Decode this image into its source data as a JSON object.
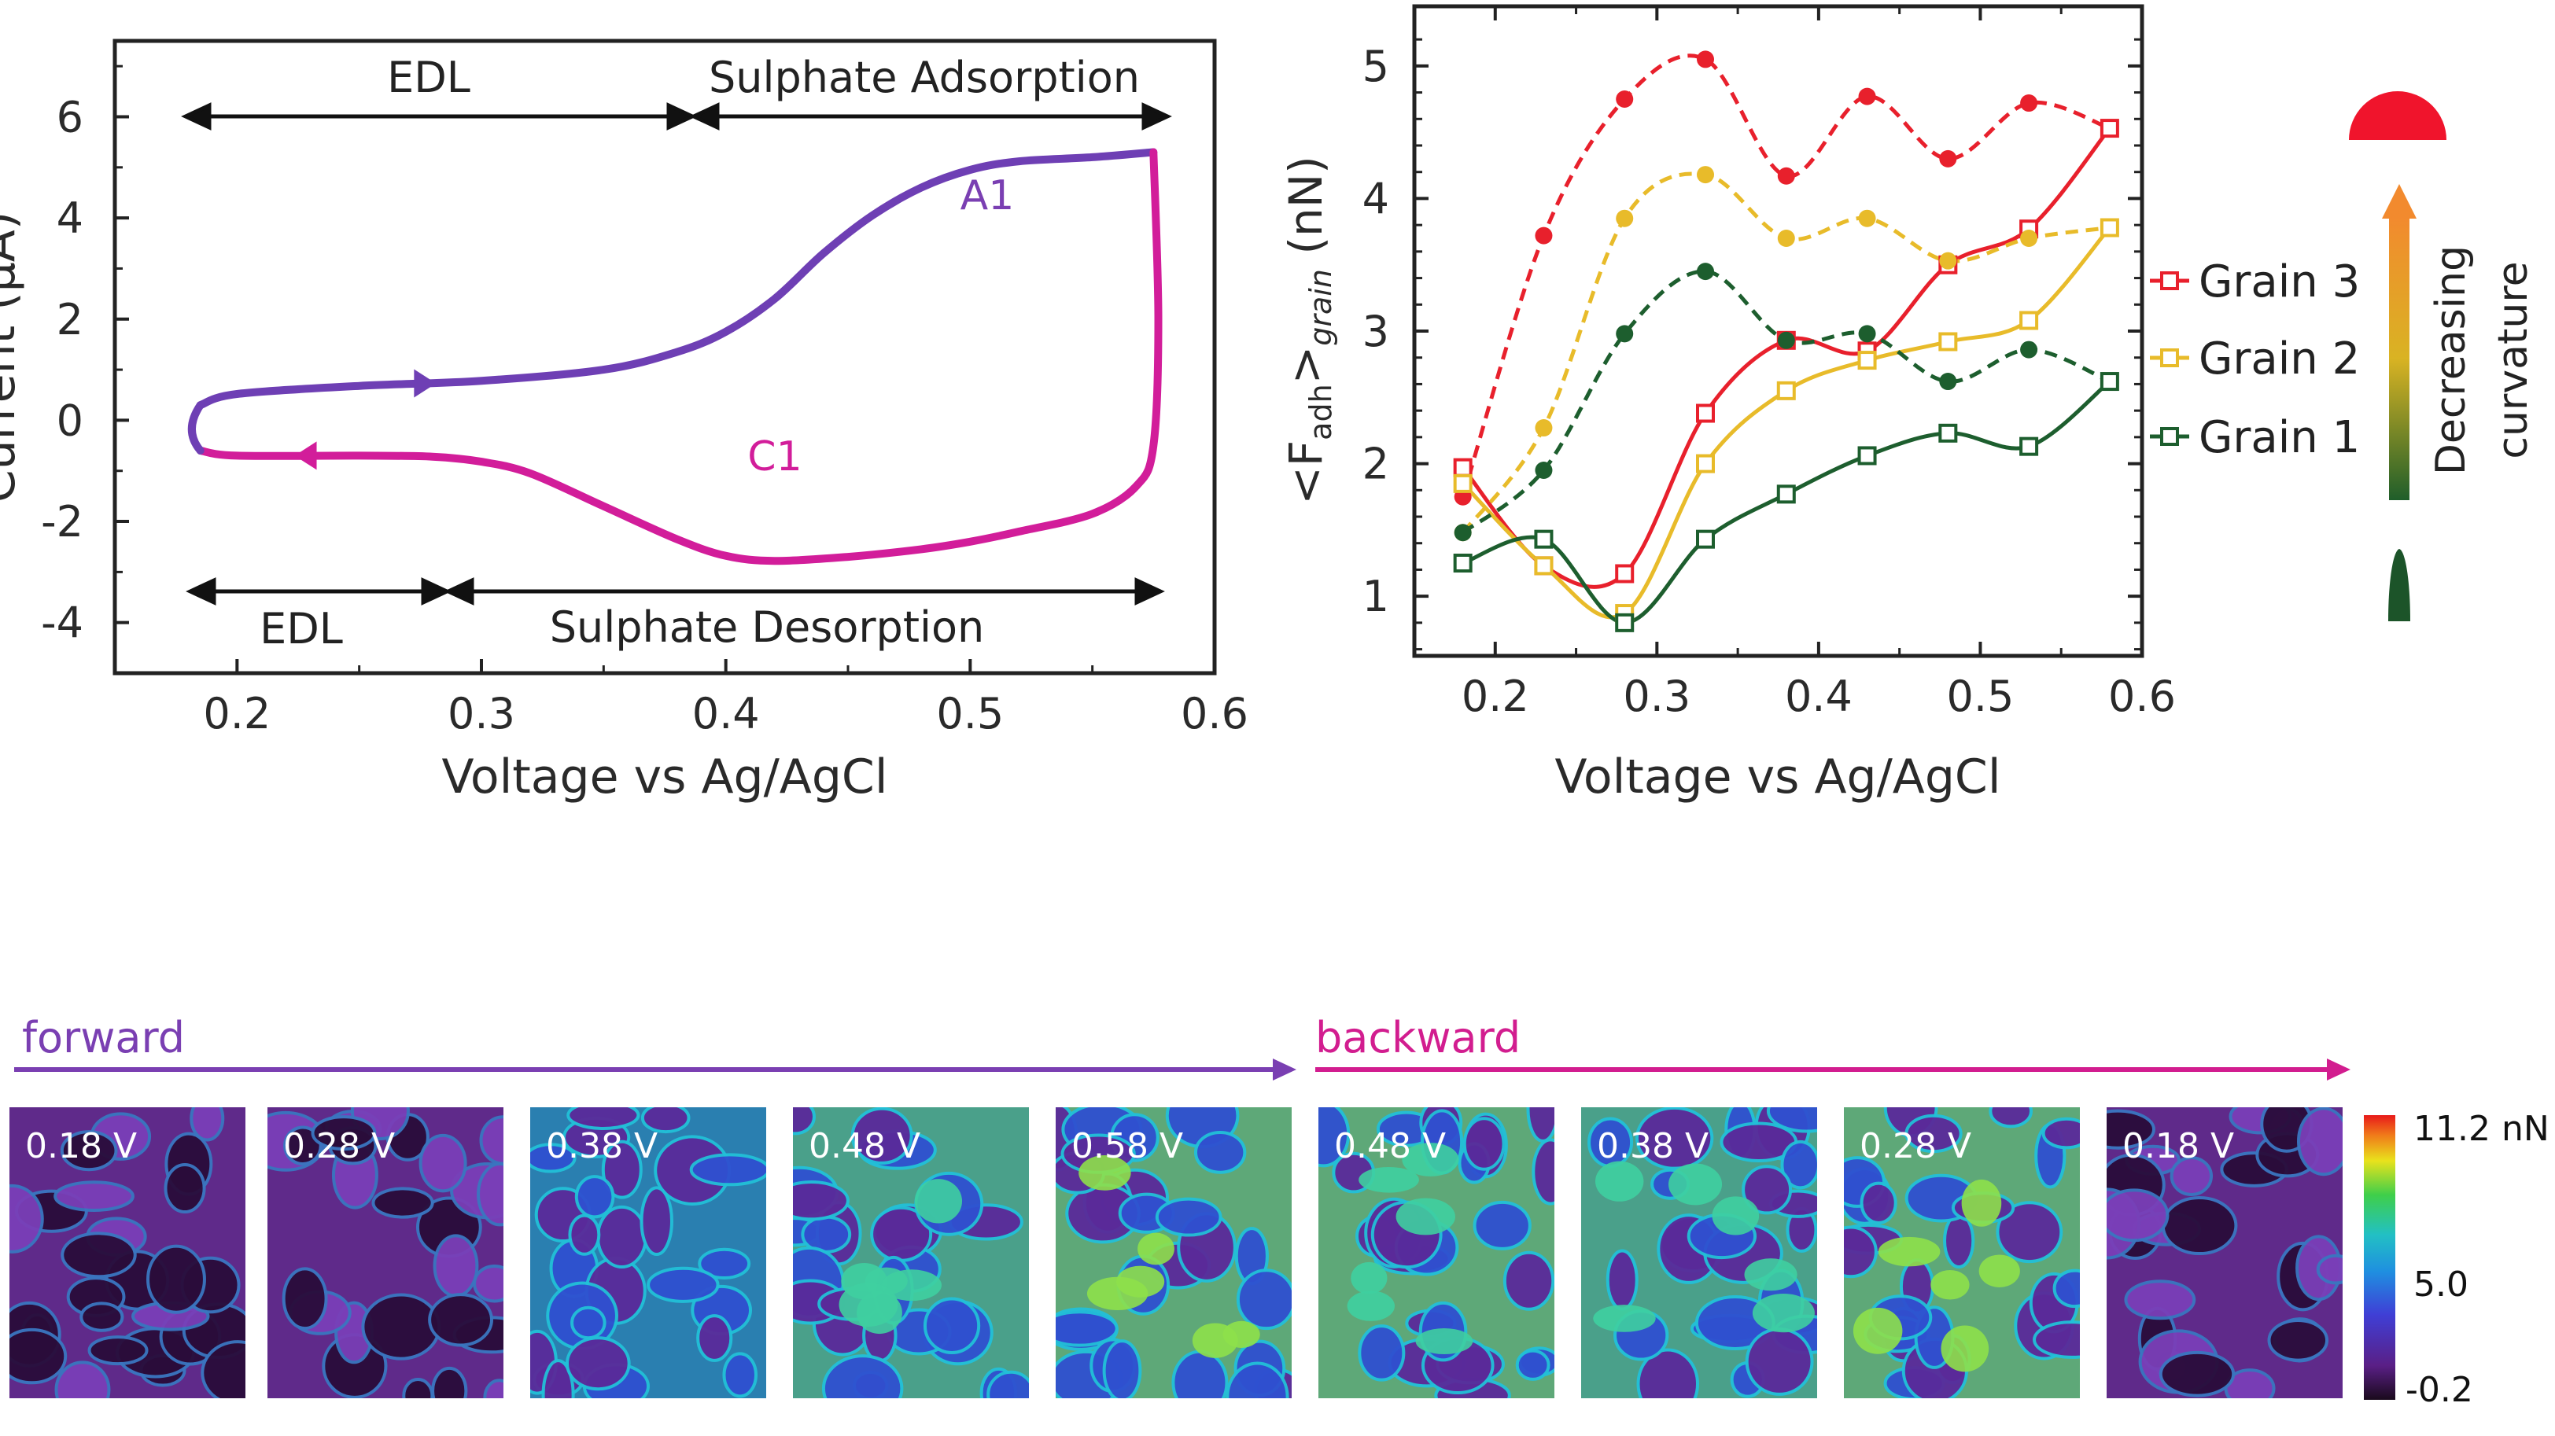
{
  "chart_data": [
    {
      "type": "line",
      "panel": "cyclic-voltammogram",
      "xlabel": "Voltage vs Ag/AgCl",
      "ylabel": "Current (μA)",
      "xlim": [
        0.15,
        0.6
      ],
      "ylim": [
        -5,
        7.5
      ],
      "x_ticks": [
        "0.2",
        "0.3",
        "0.4",
        "0.5",
        "0.6"
      ],
      "y_ticks": [
        "6",
        "4",
        "2",
        "0",
        "-2",
        "-4"
      ],
      "series": [
        {
          "color": "#6e3fb4",
          "x": [
            0.185,
            0.2,
            0.25,
            0.3,
            0.35,
            0.38,
            0.4,
            0.42,
            0.44,
            0.46,
            0.48,
            0.5,
            0.52,
            0.55,
            0.575
          ],
          "y": [
            0.3,
            0.52,
            0.68,
            0.78,
            1.0,
            1.35,
            1.75,
            2.4,
            3.3,
            4.05,
            4.6,
            4.95,
            5.12,
            5.2,
            5.3
          ]
        },
        {
          "color": "#d21d9a",
          "x": [
            0.575,
            0.577,
            0.575,
            0.568,
            0.55,
            0.52,
            0.5,
            0.48,
            0.45,
            0.42,
            0.4,
            0.38,
            0.35,
            0.32,
            0.3,
            0.28,
            0.25,
            0.2,
            0.185
          ],
          "y": [
            5.3,
            2.0,
            -0.5,
            -1.3,
            -1.85,
            -2.2,
            -2.4,
            -2.55,
            -2.7,
            -2.78,
            -2.68,
            -2.35,
            -1.7,
            -1.05,
            -0.82,
            -0.72,
            -0.7,
            -0.7,
            -0.6
          ]
        }
      ],
      "annotations": {
        "edl_top": "EDL",
        "adsorption": "Sulphate Adsorption",
        "edl_bottom": "EDL",
        "desorption": "Sulphate Desorption",
        "peak_a1": "A1",
        "peak_c1": "C1"
      }
    },
    {
      "type": "scatter",
      "panel": "adhesion-force",
      "xlabel": "Voltage vs Ag/AgCl",
      "ylabel_main": "<F",
      "ylabel_sub": "adh",
      "ylabel_mid": ">",
      "ylabel_sub2": "grain",
      "ylabel_end": " (nN)",
      "xlim": [
        0.15,
        0.6
      ],
      "ylim": [
        0.55,
        5.45
      ],
      "x_ticks": [
        "0.2",
        "0.3",
        "0.4",
        "0.5",
        "0.6"
      ],
      "y_ticks": [
        "1",
        "2",
        "3",
        "4",
        "5"
      ],
      "x": [
        0.18,
        0.23,
        0.28,
        0.33,
        0.38,
        0.43,
        0.48,
        0.53,
        0.58
      ],
      "series": [
        {
          "name": "Grain 3",
          "color": "#e8202c",
          "forward": [
            1.75,
            3.72,
            4.75,
            5.05,
            4.17,
            4.77,
            4.3,
            4.72,
            4.53
          ],
          "backward": [
            1.97,
            1.23,
            1.17,
            2.38,
            2.93,
            2.85,
            3.5,
            3.77,
            4.53
          ]
        },
        {
          "name": "Grain 2",
          "color": "#e8bb2a",
          "forward": [
            1.48,
            2.27,
            3.85,
            4.18,
            3.7,
            3.85,
            3.53,
            3.7,
            3.78
          ],
          "backward": [
            1.85,
            1.23,
            0.87,
            2.0,
            2.55,
            2.78,
            2.92,
            3.08,
            3.78
          ]
        },
        {
          "name": "Grain 1",
          "color": "#1d5e2e",
          "forward": [
            1.48,
            1.95,
            2.98,
            3.45,
            2.93,
            2.98,
            2.62,
            2.86,
            2.62
          ],
          "backward": [
            1.25,
            1.43,
            0.8,
            1.43,
            1.77,
            2.06,
            2.23,
            2.13,
            2.62
          ]
        }
      ],
      "side_label": [
        "Decreasing",
        "curvature"
      ]
    },
    {
      "type": "heatmap",
      "panel": "adhesion-maps",
      "direction_forward": "forward",
      "direction_backward": "backward",
      "map_labels": [
        "0.18 V",
        "0.28 V",
        "0.38 V",
        "0.48 V",
        "0.58 V",
        "0.48 V",
        "0.38 V",
        "0.28 V",
        "0.18 V"
      ],
      "map_level": [
        0.05,
        0.1,
        0.35,
        0.55,
        0.7,
        0.6,
        0.58,
        0.62,
        0.15
      ],
      "colorbar_labels": [
        "11.2 nN",
        "5.0",
        "-0.2"
      ],
      "colorbar_values": [
        11.2,
        5.0,
        -0.2
      ]
    }
  ],
  "colors": {
    "forward": "#7a3fb2",
    "backward": "#d21d8f"
  }
}
